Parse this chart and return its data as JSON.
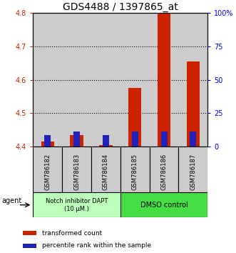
{
  "title": "GDS4488 / 1397865_at",
  "categories": [
    "GSM786182",
    "GSM786183",
    "GSM786184",
    "GSM786185",
    "GSM786186",
    "GSM786187"
  ],
  "red_values": [
    4.415,
    4.435,
    4.405,
    4.575,
    4.8,
    4.655
  ],
  "blue_values": [
    4.435,
    4.445,
    4.435,
    4.445,
    4.445,
    4.445
  ],
  "ylim_left": [
    4.4,
    4.8
  ],
  "ylim_right": [
    0,
    100
  ],
  "yticks_left": [
    4.4,
    4.5,
    4.6,
    4.7,
    4.8
  ],
  "yticks_right": [
    0,
    25,
    50,
    75,
    100
  ],
  "ytick_labels_right": [
    "0",
    "25",
    "50",
    "75",
    "100%"
  ],
  "red_color": "#cc2200",
  "blue_color": "#2222bb",
  "bar_width": 0.45,
  "blue_bar_width": 0.22,
  "group1_label": "Notch inhibitor DAPT\n(10 μM.)",
  "group2_label": "DMSO control",
  "group1_bg": "#bbffbb",
  "group2_bg": "#44dd44",
  "tick_bg": "#cccccc",
  "legend_red": "transformed count",
  "legend_blue": "percentile rank within the sample",
  "agent_label": "agent",
  "title_fontsize": 10,
  "tick_fontsize": 7,
  "label_fontsize": 7
}
